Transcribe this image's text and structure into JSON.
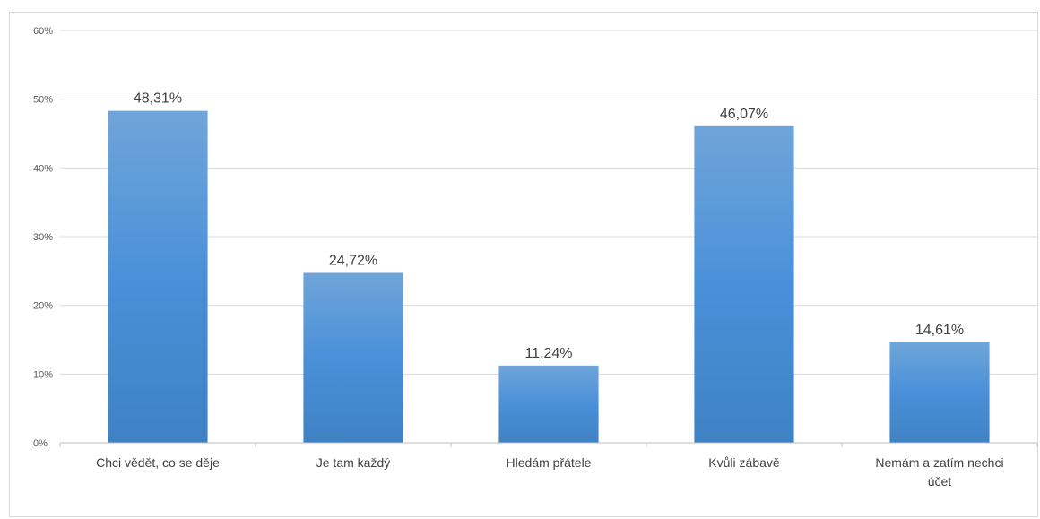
{
  "chart_data": {
    "type": "bar",
    "categories": [
      "Chci vědět, co se děje",
      "Je tam každý",
      "Hledám přátele",
      "Kvůli zábavě",
      "Nemám a zatím nechci účet"
    ],
    "category_lines": [
      [
        "Chci vědět, co se děje"
      ],
      [
        "Je tam každý"
      ],
      [
        "Hledám přátele"
      ],
      [
        "Kvůli zábavě"
      ],
      [
        "Nemám a zatím nechci",
        "účet"
      ]
    ],
    "values": [
      48.31,
      24.72,
      11.24,
      46.07,
      14.61
    ],
    "data_labels": [
      "48,31%",
      "24,72%",
      "11,24%",
      "46,07%",
      "14,61%"
    ],
    "ylim": [
      0,
      60
    ],
    "yticks": [
      0,
      10,
      20,
      30,
      40,
      50,
      60
    ],
    "ytick_labels": [
      "0%",
      "10%",
      "20%",
      "30%",
      "40%",
      "50%",
      "60%"
    ],
    "grid": true,
    "title": "",
    "xlabel": "",
    "ylabel": "",
    "colors": {
      "bar_top": "#6fa5d9",
      "bar_mid": "#4a90d9",
      "bar_bottom": "#3f82c4",
      "grid": "#d9d9d9",
      "axis": "#bfbfbf"
    }
  }
}
